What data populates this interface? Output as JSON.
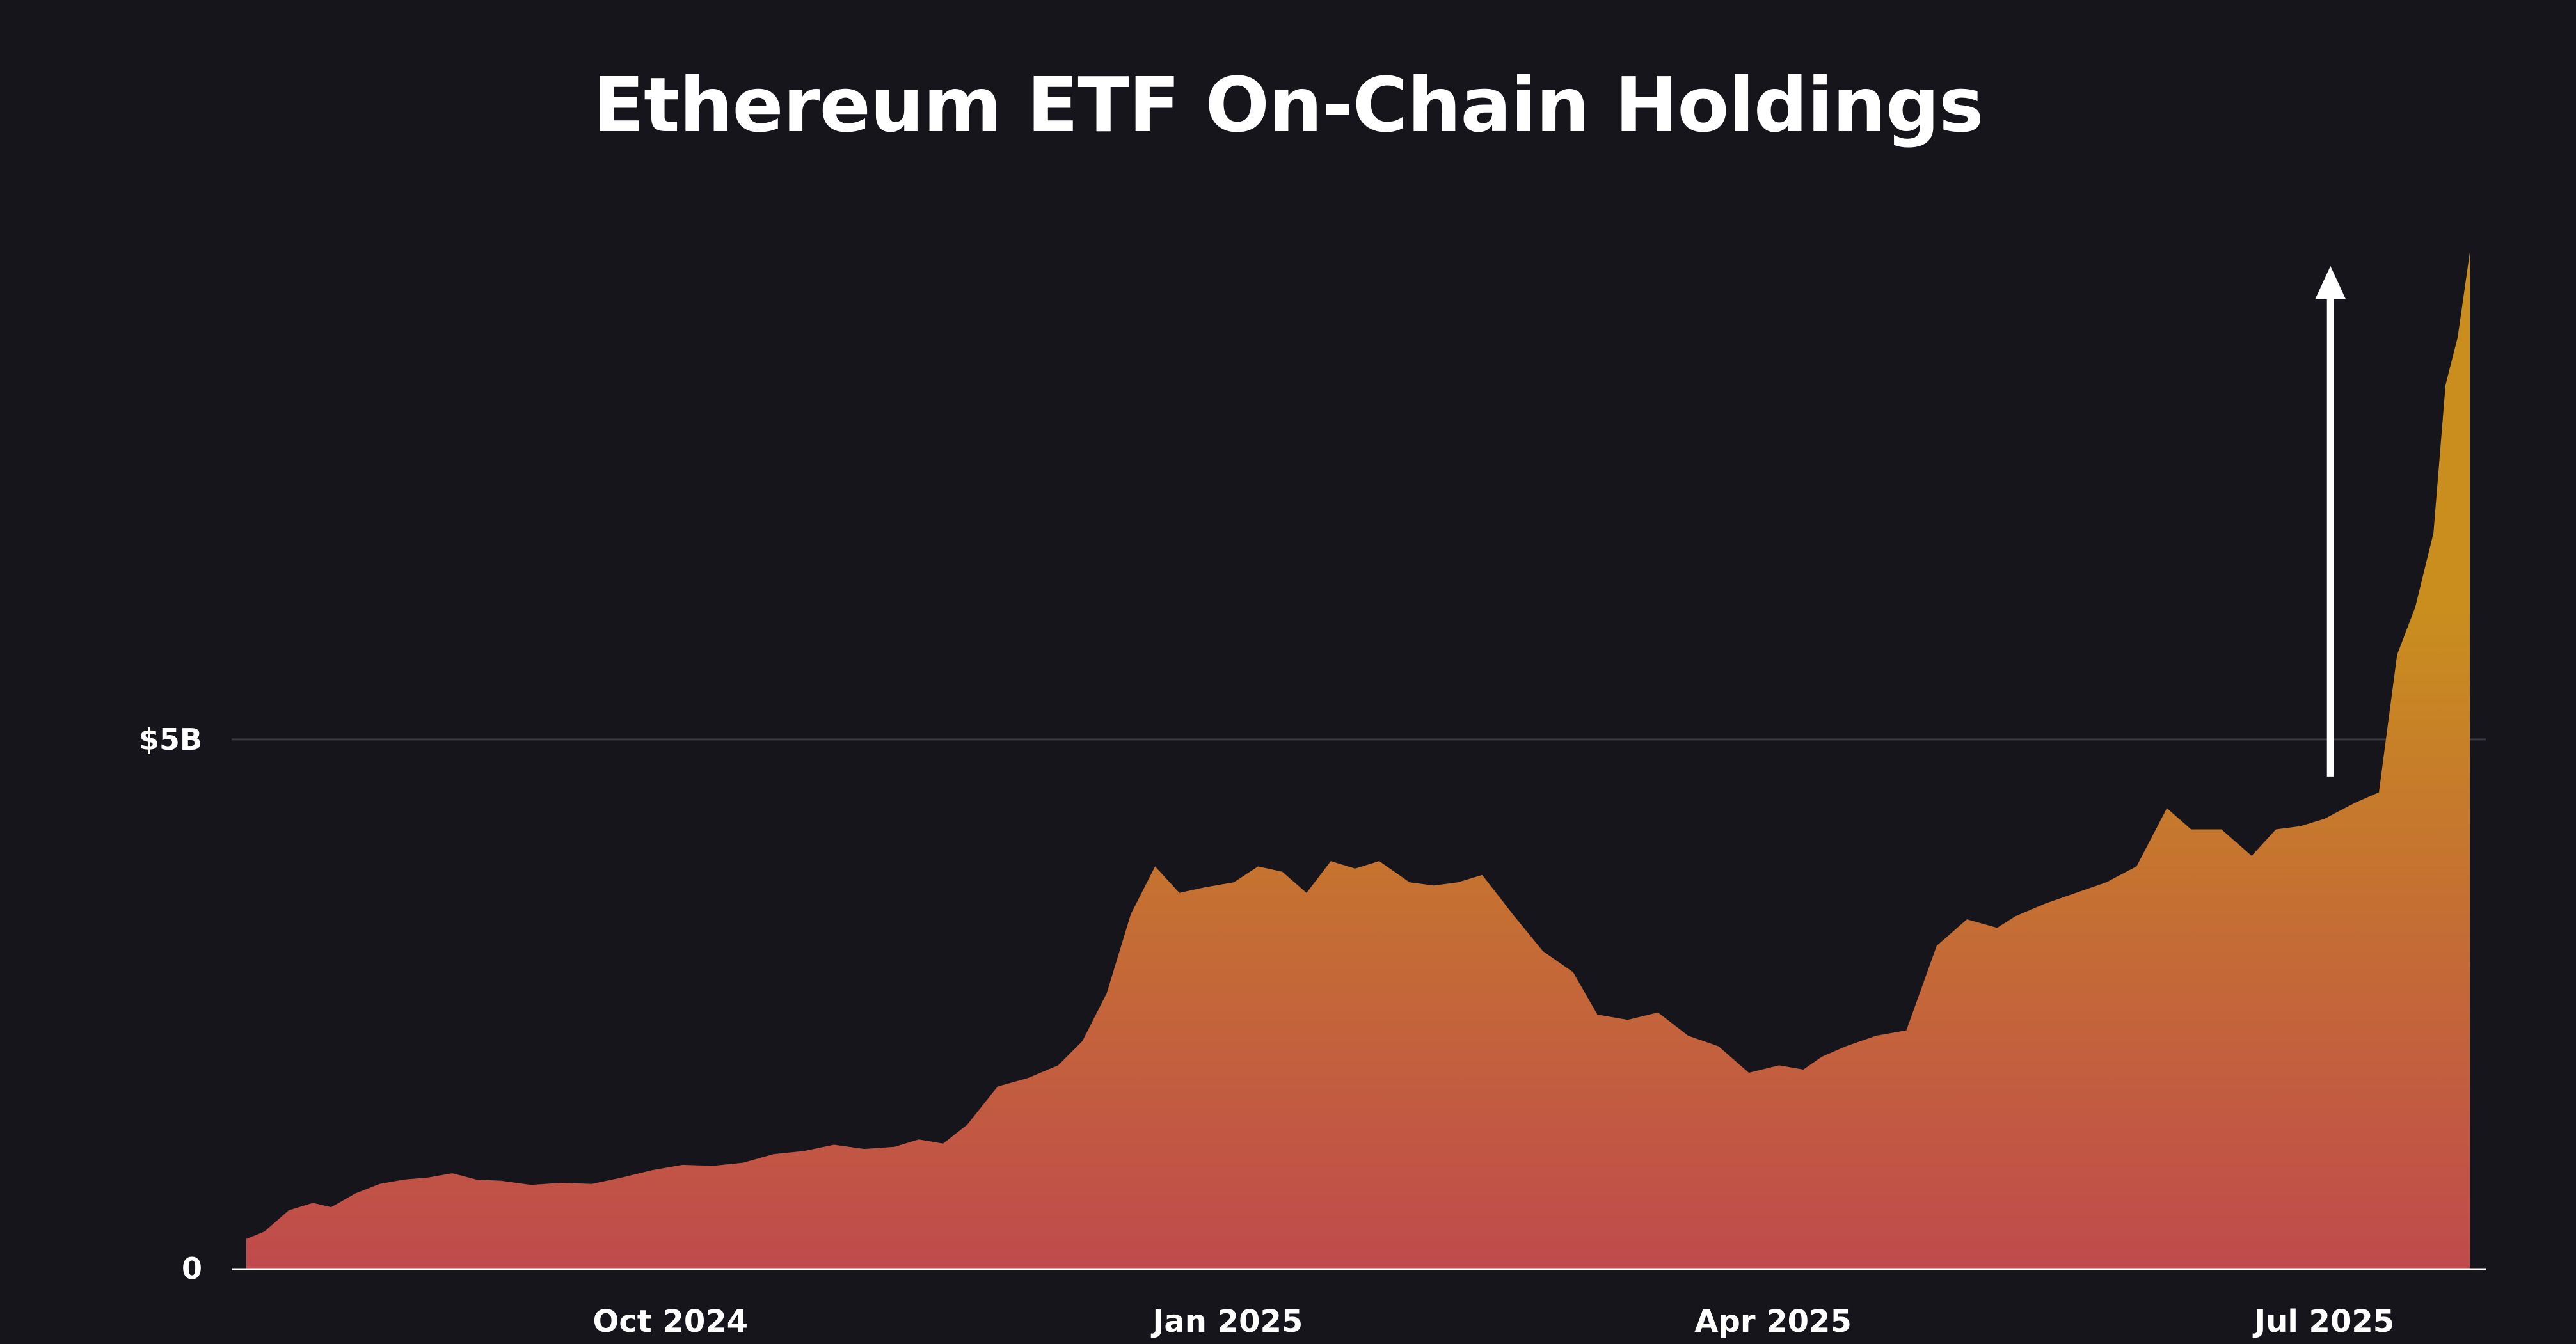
{
  "chart_data": {
    "type": "area",
    "title": "Ethereum ETF On-Chain Holdings",
    "xlabel": "",
    "ylabel": "",
    "x_unit": "date",
    "y_unit": "USD billions",
    "xlim": [
      "2024-07-23",
      "2025-07-25"
    ],
    "ylim": [
      0,
      9.6
    ],
    "x_ticks": [
      {
        "label": "Oct 2024",
        "date": "2024-10-01"
      },
      {
        "label": "Jan 2025",
        "date": "2025-01-01"
      },
      {
        "label": "Apr 2025",
        "date": "2025-04-01"
      },
      {
        "label": "Jul 2025",
        "date": "2025-07-01"
      }
    ],
    "y_ticks": [
      {
        "label": "0",
        "value": 0
      },
      {
        "label": "$5B",
        "value": 5
      }
    ],
    "grid": "horizontal",
    "legend": "none",
    "colors": {
      "background": "#16151b",
      "fill_top": "#c98e1e",
      "fill_bottom": "#c04a4c",
      "gridline": "#3d3c44",
      "text": "#ffffff"
    },
    "annotation": {
      "type": "up-arrow",
      "date": "2025-07-02",
      "from_value": 4.65,
      "to_value": 9.45
    },
    "series": [
      {
        "x": [
          "2024-07-23",
          "2024-07-26",
          "2024-07-30",
          "2024-08-03",
          "2024-08-06",
          "2024-08-10",
          "2024-08-14",
          "2024-08-18",
          "2024-08-22",
          "2024-08-26",
          "2024-08-30",
          "2024-09-03",
          "2024-09-08",
          "2024-09-13",
          "2024-09-18",
          "2024-09-23",
          "2024-09-28",
          "2024-10-03",
          "2024-10-08",
          "2024-10-13",
          "2024-10-18",
          "2024-10-23",
          "2024-10-28",
          "2024-11-02",
          "2024-11-07",
          "2024-11-11",
          "2024-11-15",
          "2024-11-19",
          "2024-11-24",
          "2024-11-29",
          "2024-12-04",
          "2024-12-08",
          "2024-12-12",
          "2024-12-16",
          "2024-12-20",
          "2024-12-24",
          "2024-12-28",
          "2025-01-02",
          "2025-01-06",
          "2025-01-10",
          "2025-01-14",
          "2025-01-18",
          "2025-01-22",
          "2025-01-26",
          "2025-01-31",
          "2025-02-04",
          "2025-02-08",
          "2025-02-12",
          "2025-02-17",
          "2025-02-22",
          "2025-02-27",
          "2025-03-03",
          "2025-03-08",
          "2025-03-13",
          "2025-03-18",
          "2025-03-23",
          "2025-03-28",
          "2025-04-02",
          "2025-04-06",
          "2025-04-09",
          "2025-04-13",
          "2025-04-18",
          "2025-04-23",
          "2025-04-28",
          "2025-05-03",
          "2025-05-08",
          "2025-05-11",
          "2025-05-16",
          "2025-05-21",
          "2025-05-26",
          "2025-05-31",
          "2025-06-05",
          "2025-06-09",
          "2025-06-14",
          "2025-06-19",
          "2025-06-23",
          "2025-06-27",
          "2025-07-01",
          "2025-07-06",
          "2025-07-10",
          "2025-07-13",
          "2025-07-16",
          "2025-07-19",
          "2025-07-21",
          "2025-07-23",
          "2025-07-25"
        ],
        "values": [
          0.28,
          0.35,
          0.55,
          0.62,
          0.58,
          0.71,
          0.8,
          0.84,
          0.86,
          0.9,
          0.84,
          0.83,
          0.79,
          0.81,
          0.8,
          0.86,
          0.93,
          0.98,
          0.97,
          1.0,
          1.08,
          1.11,
          1.17,
          1.13,
          1.15,
          1.22,
          1.18,
          1.36,
          1.72,
          1.8,
          1.92,
          2.15,
          2.6,
          3.35,
          3.8,
          3.55,
          3.6,
          3.65,
          3.8,
          3.75,
          3.55,
          3.85,
          3.78,
          3.85,
          3.65,
          3.62,
          3.65,
          3.72,
          3.35,
          3.0,
          2.8,
          2.4,
          2.35,
          2.42,
          2.2,
          2.1,
          1.85,
          1.92,
          1.88,
          2.0,
          2.1,
          2.2,
          2.25,
          3.05,
          3.3,
          3.22,
          3.33,
          3.45,
          3.55,
          3.65,
          3.8,
          4.35,
          4.15,
          4.15,
          3.9,
          4.15,
          4.18,
          4.25,
          4.4,
          4.5,
          5.8,
          6.25,
          6.95,
          8.35,
          8.8,
          9.6
        ]
      }
    ]
  }
}
